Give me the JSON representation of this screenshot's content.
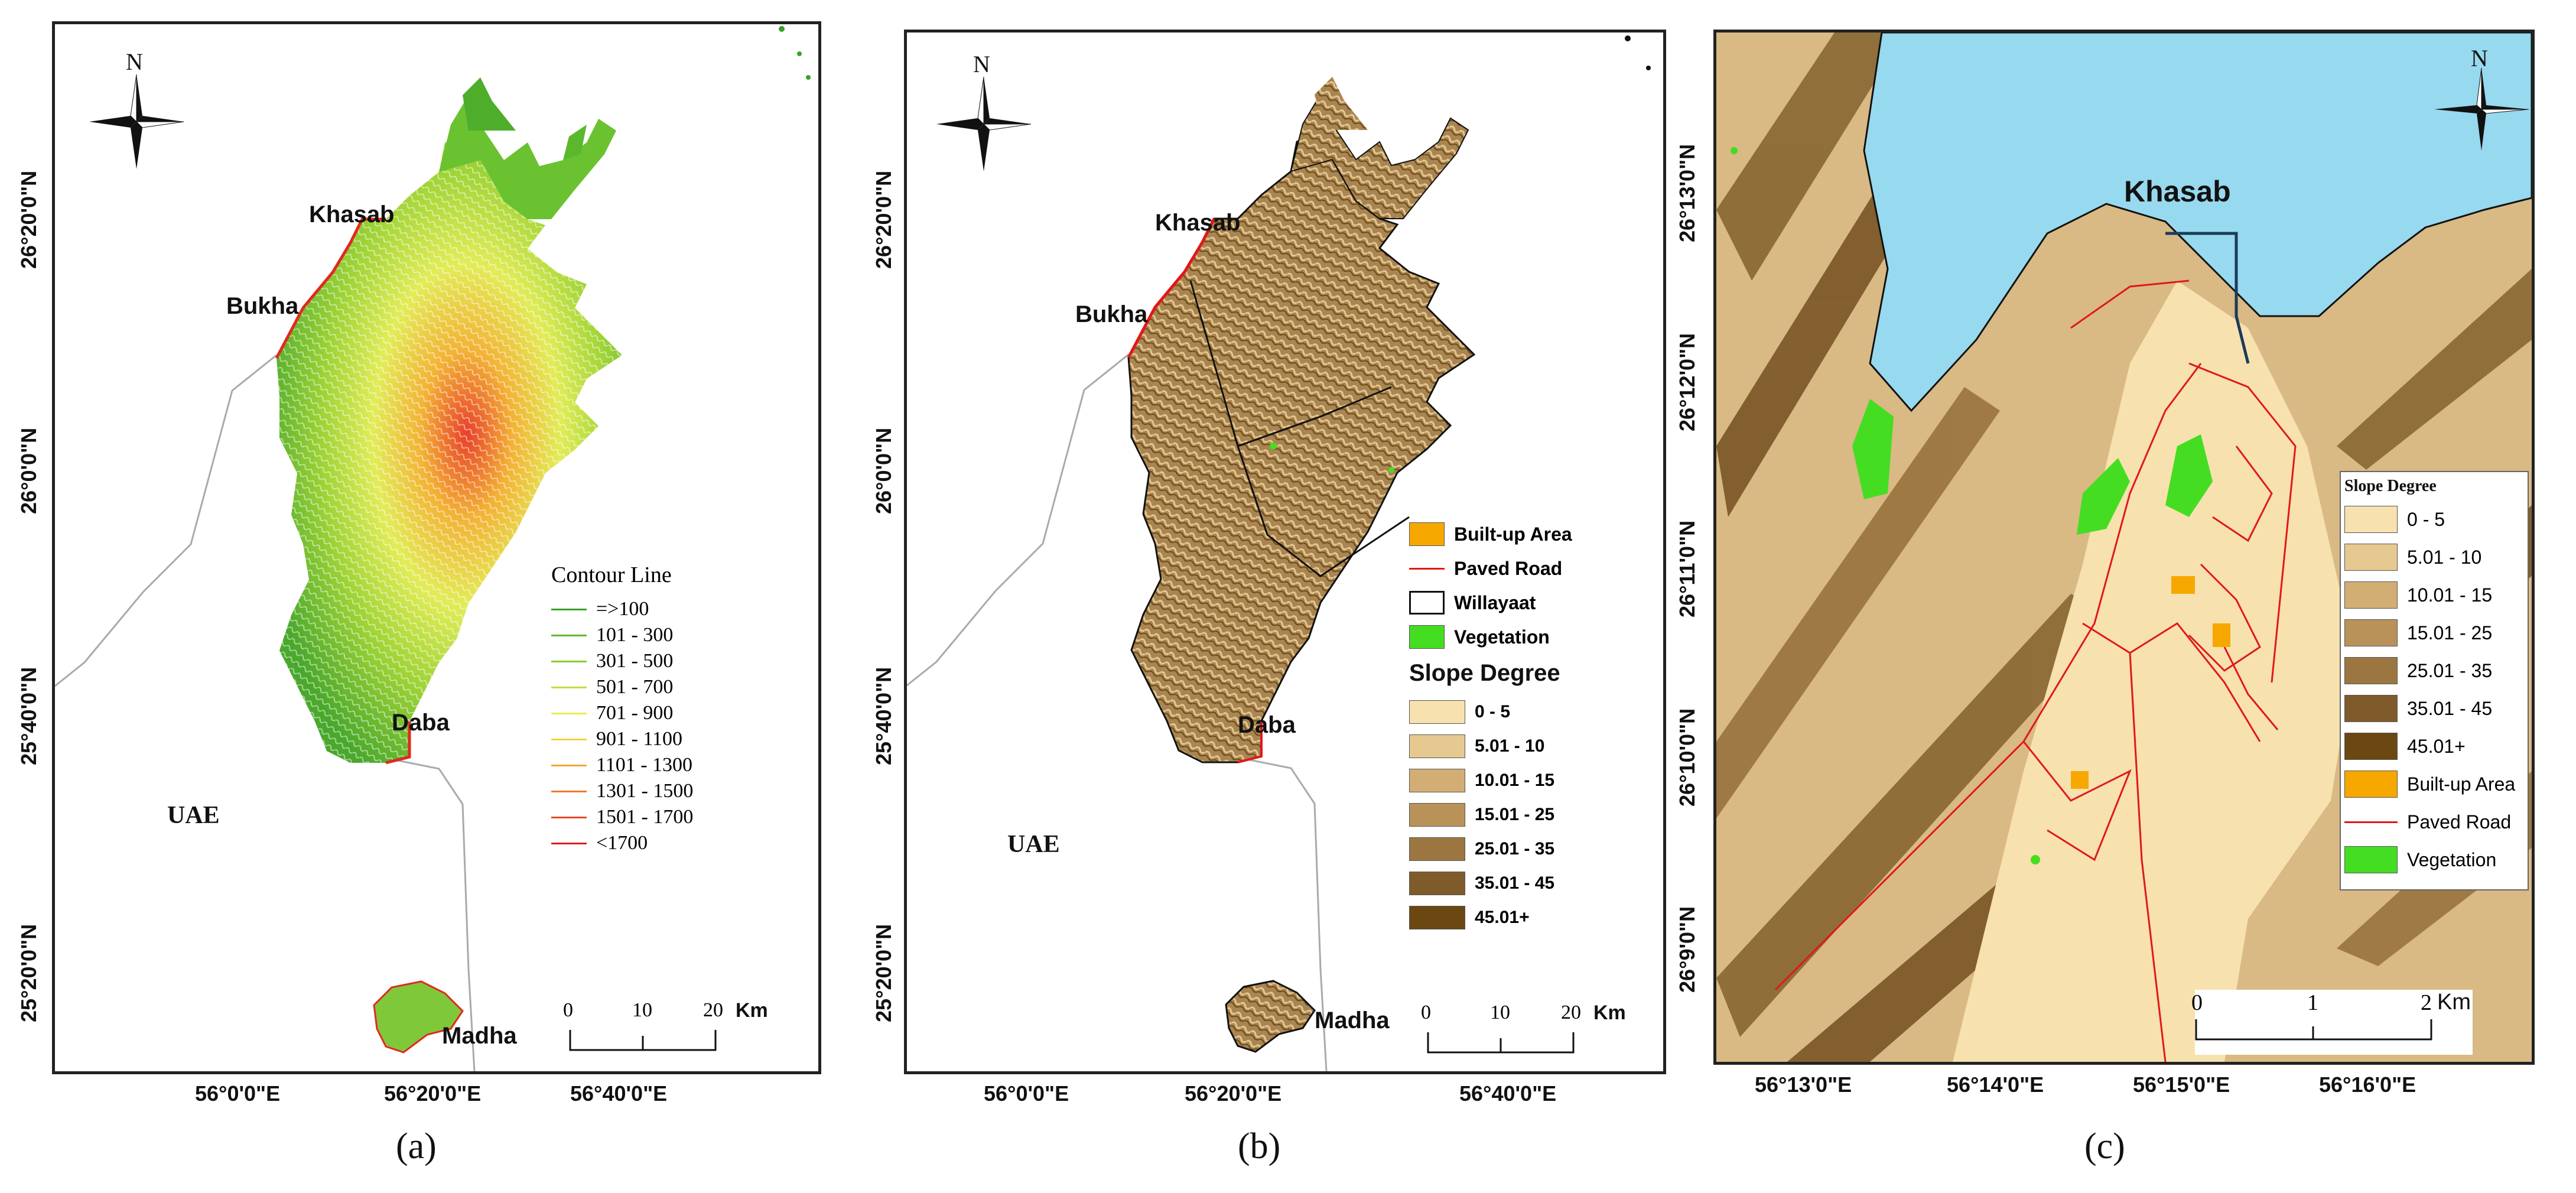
{
  "panels": {
    "a": {
      "caption": "(a)",
      "places": {
        "khasab": "Khasab",
        "bukha": "Bukha",
        "daba": "Daba",
        "madha": "Madha",
        "uae": "UAE"
      },
      "north": "N",
      "lat_labels": [
        "26°20'0\"N",
        "26°0'0\"N",
        "25°40'0\"N",
        "25°20'0\"N"
      ],
      "lon_labels": [
        "56°0'0\"E",
        "56°20'0\"E",
        "56°40'0\"E"
      ],
      "legend": {
        "title": "Contour Line",
        "items": [
          {
            "label": "=>100",
            "color": "#3aa12a"
          },
          {
            "label": "101 - 300",
            "color": "#5fb82c"
          },
          {
            "label": "301 - 500",
            "color": "#8ccc2f"
          },
          {
            "label": "501 - 700",
            "color": "#bfe040"
          },
          {
            "label": "701 - 900",
            "color": "#e9ee55"
          },
          {
            "label": "901 - 1100",
            "color": "#f4d23c"
          },
          {
            "label": "1101 - 1300",
            "color": "#f3a833"
          },
          {
            "label": "1301 - 1500",
            "color": "#ee7a2c"
          },
          {
            "label": "1501 - 1700",
            "color": "#e84a26"
          },
          {
            "label": "<1700",
            "color": "#d9201f"
          }
        ]
      },
      "scale": {
        "ticks": [
          "0",
          "10",
          "20"
        ],
        "unit": "Km"
      }
    },
    "b": {
      "caption": "(b)",
      "places": {
        "khasab": "Khasab",
        "bukha": "Bukha",
        "daba": "Daba",
        "madha": "Madha",
        "uae": "UAE"
      },
      "north": "N",
      "lat_labels": [
        "26°20'0\"N",
        "26°0'0\"N",
        "25°40'0\"N",
        "25°20'0\"N"
      ],
      "lon_labels": [
        "56°0'0\"E",
        "56°20'0\"E",
        "56°40'0\"E"
      ],
      "legend_features": [
        {
          "label": "Built-up Area",
          "kind": "fill",
          "color": "#f6a800"
        },
        {
          "label": "Paved Road",
          "kind": "line",
          "color": "#e01818"
        },
        {
          "label": "Willayaat",
          "kind": "outline",
          "color": "#111111"
        },
        {
          "label": "Vegetation",
          "kind": "fill",
          "color": "#44dd22"
        }
      ],
      "slope_title": "Slope Degree",
      "slope_items": [
        {
          "label": "0 - 5",
          "color": "#f7e1ae"
        },
        {
          "label": "5.01 - 10",
          "color": "#e6c990"
        },
        {
          "label": "10.01 - 15",
          "color": "#d2ae74"
        },
        {
          "label": "15.01 - 25",
          "color": "#b9925a"
        },
        {
          "label": "25.01 - 35",
          "color": "#9c7641"
        },
        {
          "label": "35.01 - 45",
          "color": "#7f5b2c"
        },
        {
          "label": "45.01+",
          "color": "#6b4712"
        }
      ],
      "scale": {
        "ticks": [
          "0",
          "10",
          "20"
        ],
        "unit": "Km"
      }
    },
    "c": {
      "caption": "(c)",
      "place": "Khasab",
      "north": "N",
      "lat_labels": [
        "26°13'0\"N",
        "26°12'0\"N",
        "26°11'0\"N",
        "26°10'0\"N",
        "26°9'0\"N"
      ],
      "lon_labels": [
        "56°13'0\"E",
        "56°14'0\"E",
        "56°15'0\"E",
        "56°16'0\"E"
      ],
      "legend_title": "Slope Degree",
      "legend_items": [
        {
          "label": "0 - 5",
          "kind": "fill",
          "color": "#f7e1ae"
        },
        {
          "label": "5.01 - 10",
          "kind": "fill",
          "color": "#e6c990"
        },
        {
          "label": "10.01 - 15",
          "kind": "fill",
          "color": "#d2ae74"
        },
        {
          "label": "15.01 - 25",
          "kind": "fill",
          "color": "#b9925a"
        },
        {
          "label": "25.01 - 35",
          "kind": "fill",
          "color": "#9c7641"
        },
        {
          "label": "35.01 - 45",
          "kind": "fill",
          "color": "#7f5b2c"
        },
        {
          "label": "45.01+",
          "kind": "fill",
          "color": "#6b4712"
        },
        {
          "label": "Built-up Area",
          "kind": "fill",
          "color": "#f6a800"
        },
        {
          "label": "Paved Road",
          "kind": "line",
          "color": "#e01818"
        },
        {
          "label": "Vegetation",
          "kind": "fill",
          "color": "#44dd22"
        }
      ],
      "scale": {
        "ticks": [
          "0",
          "1",
          "2"
        ],
        "unit": "Km"
      },
      "sea_color": "#97d9ef"
    }
  }
}
